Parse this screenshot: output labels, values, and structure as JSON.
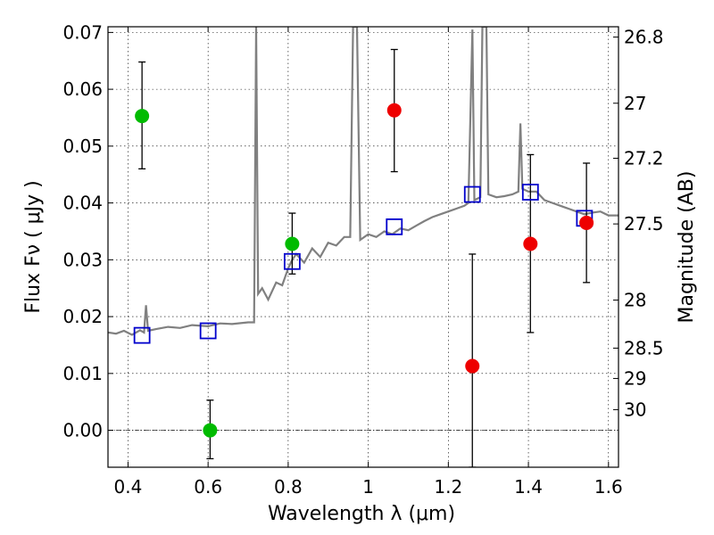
{
  "chart_data": {
    "type": "scatter",
    "xlabel": "Wavelength  λ (μm)",
    "ylabel": "Flux  Fν  ( μJy )",
    "y2label": "Magnitude (AB)",
    "xlim": [
      0.35,
      1.625
    ],
    "ylim": [
      -0.0065,
      0.071
    ],
    "grid": true,
    "x_ticks": [
      0.4,
      0.6,
      0.8,
      1.0,
      1.2,
      1.4,
      1.6
    ],
    "x_tick_labels": [
      "0.4",
      "0.6",
      "0.8",
      "1",
      "1.2",
      "1.4",
      "1.6"
    ],
    "y_ticks": [
      0.0,
      0.01,
      0.02,
      0.03,
      0.04,
      0.05,
      0.06,
      0.07
    ],
    "y_tick_labels": [
      "0.00",
      "0.01",
      "0.02",
      "0.03",
      "0.04",
      "0.05",
      "0.06",
      "0.07"
    ],
    "mag_ticks": [
      26.8,
      27,
      27.2,
      27.5,
      28,
      28.5,
      29,
      30
    ],
    "mag_tick_labels": [
      "26.8",
      "27",
      "27.2",
      "27.5",
      "28",
      "28.5",
      "29",
      "30"
    ],
    "zero_line": 0.0,
    "series": [
      {
        "kind": "spectrum",
        "color": "#808080",
        "points": [
          [
            0.35,
            0.0172
          ],
          [
            0.37,
            0.017
          ],
          [
            0.39,
            0.0175
          ],
          [
            0.41,
            0.0168
          ],
          [
            0.43,
            0.0176
          ],
          [
            0.44,
            0.0172
          ],
          [
            0.445,
            0.022
          ],
          [
            0.45,
            0.0175
          ],
          [
            0.47,
            0.0178
          ],
          [
            0.5,
            0.0182
          ],
          [
            0.53,
            0.018
          ],
          [
            0.56,
            0.0185
          ],
          [
            0.6,
            0.0183
          ],
          [
            0.63,
            0.0188
          ],
          [
            0.66,
            0.0187
          ],
          [
            0.7,
            0.019
          ],
          [
            0.715,
            0.019
          ],
          [
            0.72,
            0.071
          ],
          [
            0.725,
            0.024
          ],
          [
            0.735,
            0.025
          ],
          [
            0.75,
            0.023
          ],
          [
            0.77,
            0.026
          ],
          [
            0.785,
            0.0255
          ],
          [
            0.8,
            0.0285
          ],
          [
            0.81,
            0.03
          ],
          [
            0.82,
            0.031
          ],
          [
            0.84,
            0.0295
          ],
          [
            0.86,
            0.032
          ],
          [
            0.88,
            0.0305
          ],
          [
            0.9,
            0.033
          ],
          [
            0.92,
            0.0325
          ],
          [
            0.94,
            0.034
          ],
          [
            0.955,
            0.034
          ],
          [
            0.962,
            0.071
          ],
          [
            0.972,
            0.071
          ],
          [
            0.98,
            0.0335
          ],
          [
            1.0,
            0.0345
          ],
          [
            1.02,
            0.034
          ],
          [
            1.04,
            0.035
          ],
          [
            1.06,
            0.0345
          ],
          [
            1.08,
            0.0355
          ],
          [
            1.1,
            0.0352
          ],
          [
            1.12,
            0.036
          ],
          [
            1.14,
            0.0368
          ],
          [
            1.16,
            0.0375
          ],
          [
            1.18,
            0.038
          ],
          [
            1.2,
            0.0385
          ],
          [
            1.22,
            0.039
          ],
          [
            1.24,
            0.0395
          ],
          [
            1.25,
            0.04
          ],
          [
            1.26,
            0.0705
          ],
          [
            1.265,
            0.0405
          ],
          [
            1.28,
            0.041
          ],
          [
            1.285,
            0.071
          ],
          [
            1.295,
            0.071
          ],
          [
            1.3,
            0.0415
          ],
          [
            1.32,
            0.041
          ],
          [
            1.34,
            0.0412
          ],
          [
            1.36,
            0.0415
          ],
          [
            1.375,
            0.042
          ],
          [
            1.38,
            0.054
          ],
          [
            1.385,
            0.0425
          ],
          [
            1.4,
            0.042
          ],
          [
            1.42,
            0.042
          ],
          [
            1.44,
            0.0405
          ],
          [
            1.46,
            0.04
          ],
          [
            1.48,
            0.0395
          ],
          [
            1.5,
            0.039
          ],
          [
            1.52,
            0.0385
          ],
          [
            1.54,
            0.038
          ],
          [
            1.56,
            0.0383
          ],
          [
            1.58,
            0.0385
          ],
          [
            1.6,
            0.0378
          ],
          [
            1.625,
            0.0378
          ]
        ]
      },
      {
        "kind": "model_squares",
        "color": "#0000cc",
        "points": [
          [
            0.435,
            0.0167
          ],
          [
            0.6,
            0.0175
          ],
          [
            0.81,
            0.0297
          ],
          [
            1.065,
            0.0358
          ],
          [
            1.26,
            0.0415
          ],
          [
            1.405,
            0.0419
          ],
          [
            1.54,
            0.0373
          ]
        ]
      },
      {
        "kind": "green_points",
        "color": "#00bb00",
        "points": [
          {
            "x": 0.435,
            "y": 0.0553,
            "lo": 0.046,
            "hi": 0.0648
          },
          {
            "x": 0.605,
            "y": 0.0,
            "lo": -0.005,
            "hi": 0.0053
          },
          {
            "x": 0.81,
            "y": 0.0328,
            "lo": 0.0275,
            "hi": 0.0382
          }
        ]
      },
      {
        "kind": "red_points",
        "color": "#ee0000",
        "points": [
          {
            "x": 1.065,
            "y": 0.0563,
            "lo": 0.0455,
            "hi": 0.067
          },
          {
            "x": 1.26,
            "y": 0.0113,
            "lo": -0.0065,
            "hi": 0.031
          },
          {
            "x": 1.405,
            "y": 0.0328,
            "lo": 0.0172,
            "hi": 0.0485
          },
          {
            "x": 1.545,
            "y": 0.0365,
            "lo": 0.026,
            "hi": 0.047
          }
        ]
      }
    ]
  }
}
